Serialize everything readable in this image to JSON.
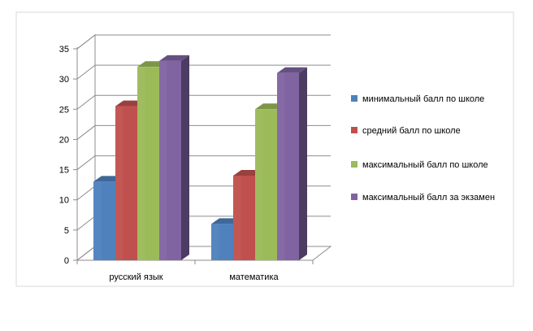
{
  "chart_data": {
    "type": "bar",
    "categories": [
      "русский язык",
      "математика"
    ],
    "series": [
      {
        "name": "минимальный балл по школе",
        "values": [
          13,
          6
        ],
        "color": "#4F81BD"
      },
      {
        "name": "средний балл по школе",
        "values": [
          25.5,
          14
        ],
        "color": "#C0504D"
      },
      {
        "name": "максимальный балл по школе",
        "values": [
          32,
          25
        ],
        "color": "#9BBB59"
      },
      {
        "name": "максимальный балл за экзамен",
        "values": [
          33,
          31
        ],
        "color": "#8064A2"
      }
    ],
    "y_ticks": [
      0,
      5,
      10,
      15,
      20,
      25,
      30,
      35
    ],
    "ylim": [
      0,
      35
    ],
    "grid": true,
    "legend_position": "right",
    "style": "3d-clustered-column"
  }
}
